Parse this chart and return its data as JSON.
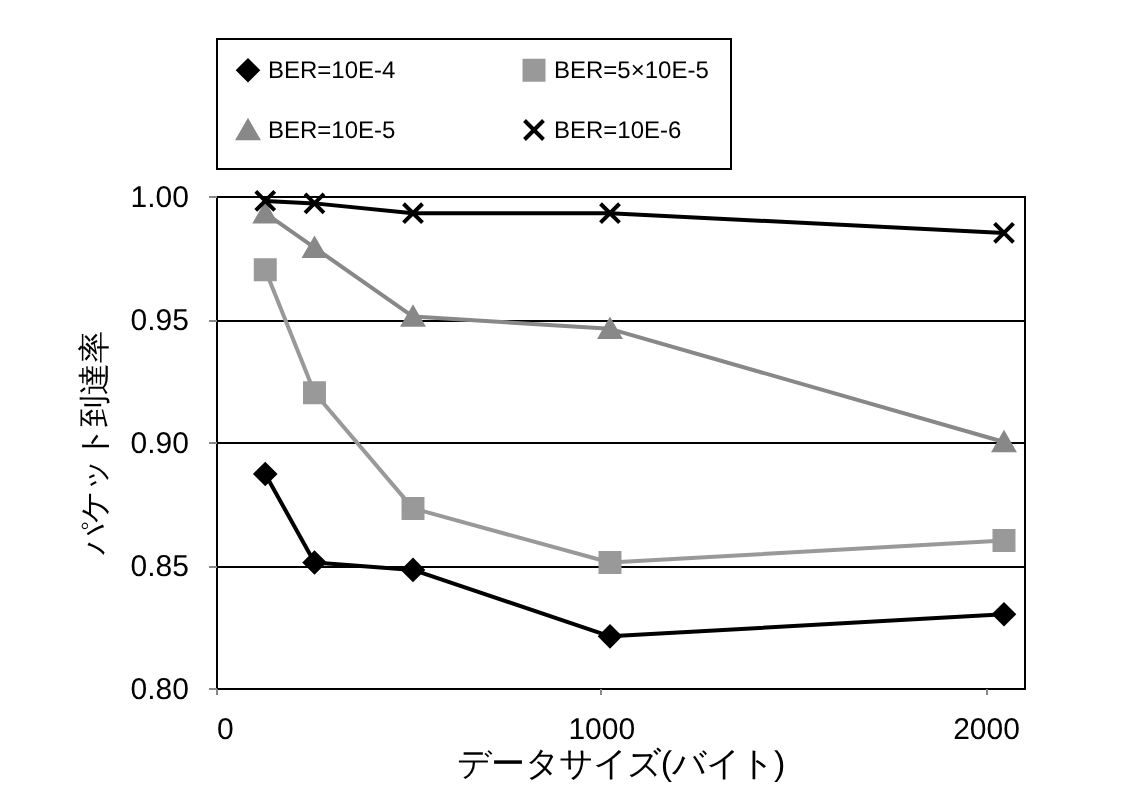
{
  "chart_data": {
    "type": "line",
    "xlabel": "データサイズ(バイト)",
    "ylabel": "パケット到達率",
    "x": [
      128,
      256,
      512,
      1024,
      2048
    ],
    "series": [
      {
        "name": "BER=10E-4",
        "color": "#000000",
        "marker": "diamond",
        "values": [
          0.887,
          0.851,
          0.848,
          0.821,
          0.83
        ]
      },
      {
        "name": "BER=5×10E-5",
        "color": "#999999",
        "marker": "square",
        "values": [
          0.97,
          0.92,
          0.873,
          0.851,
          0.86
        ]
      },
      {
        "name": "BER=10E-5",
        "color": "#888888",
        "marker": "triangle",
        "values": [
          0.993,
          0.979,
          0.951,
          0.946,
          0.9
        ]
      },
      {
        "name": "BER=10E-6",
        "color": "#000000",
        "marker": "cross",
        "values": [
          0.998,
          0.997,
          0.993,
          0.993,
          0.985
        ]
      }
    ],
    "xlim": [
      0,
      2100
    ],
    "xticks": [
      0,
      1000,
      2000
    ],
    "ylim": [
      0.8,
      1.0
    ],
    "yticks": [
      {
        "value": 0.8,
        "label": "0.80"
      },
      {
        "value": 0.85,
        "label": "0.85"
      },
      {
        "value": 0.9,
        "label": "0.90"
      },
      {
        "value": 0.95,
        "label": "0.95"
      },
      {
        "value": 1.0,
        "label": "1.00"
      }
    ],
    "grid": "y",
    "legend": "top",
    "line_style": "solid"
  }
}
